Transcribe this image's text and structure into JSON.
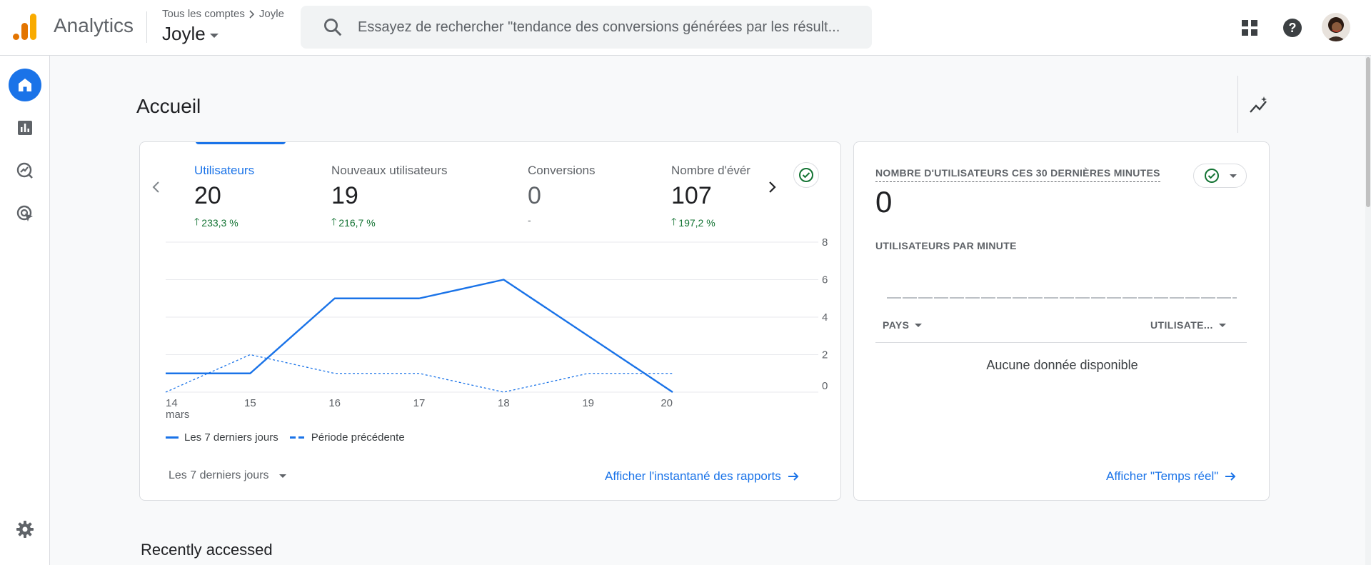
{
  "header": {
    "app_name": "Analytics",
    "breadcrumb": {
      "account": "Tous les comptes",
      "property": "Joyle"
    },
    "property_selector": "Joyle",
    "search_placeholder": "Essayez de rechercher \"tendance des conversions générées par les résult...",
    "icons": [
      "apps-icon",
      "help-icon",
      "avatar"
    ]
  },
  "nav": {
    "items": [
      {
        "name": "home",
        "icon": "home-icon",
        "active": true
      },
      {
        "name": "reports",
        "icon": "bar-chart-icon",
        "active": false
      },
      {
        "name": "explore",
        "icon": "explore-icon",
        "active": false
      },
      {
        "name": "advertising",
        "icon": "ads-icon",
        "active": false
      }
    ],
    "settings_icon": "gear-icon"
  },
  "page": {
    "title": "Accueil",
    "recently_accessed": "Recently accessed"
  },
  "overview": {
    "metrics": [
      {
        "label": "Utilisateurs",
        "value": "20",
        "delta": "233,3 %",
        "active": true
      },
      {
        "label": "Nouveaux utilisateurs",
        "value": "19",
        "delta": "216,7 %",
        "active": false
      },
      {
        "label": "Conversions",
        "value": "0",
        "delta": "-",
        "active": false
      },
      {
        "label": "Nombre d'évér",
        "value": "107",
        "delta": "197,2 %",
        "active": false
      }
    ],
    "date_range": "Les 7 derniers jours",
    "link": "Afficher l'instantané des rapports",
    "legend": {
      "current": "Les 7 derniers jours",
      "previous": "Période précédente"
    },
    "accent": "#1a73e8",
    "positive_color": "#137333"
  },
  "chart_data": {
    "type": "line",
    "x": [
      "14",
      "15",
      "16",
      "17",
      "18",
      "19",
      "20"
    ],
    "x_sublabel": "mars",
    "yticks": [
      "8",
      "6",
      "4",
      "2",
      "0"
    ],
    "ylim": [
      0,
      8
    ],
    "series": [
      {
        "name": "Les 7 derniers jours",
        "style": "solid",
        "values": [
          1,
          1,
          5,
          5,
          6,
          3,
          0
        ]
      },
      {
        "name": "Période précédente",
        "style": "dashed",
        "values": [
          0,
          2,
          1,
          1,
          0,
          1,
          1
        ]
      }
    ],
    "grid": true,
    "legend_position": "bottom-left"
  },
  "realtime": {
    "title": "NOMBRE D'UTILISATEURS CES 30 DERNIÈRES MINUTES",
    "value": "0",
    "subtitle": "UTILISATEURS PAR MINUTE",
    "col_country": "PAYS",
    "col_users": "UTILISATE...",
    "empty": "Aucune donnée disponible",
    "link": "Afficher \"Temps réel\""
  }
}
